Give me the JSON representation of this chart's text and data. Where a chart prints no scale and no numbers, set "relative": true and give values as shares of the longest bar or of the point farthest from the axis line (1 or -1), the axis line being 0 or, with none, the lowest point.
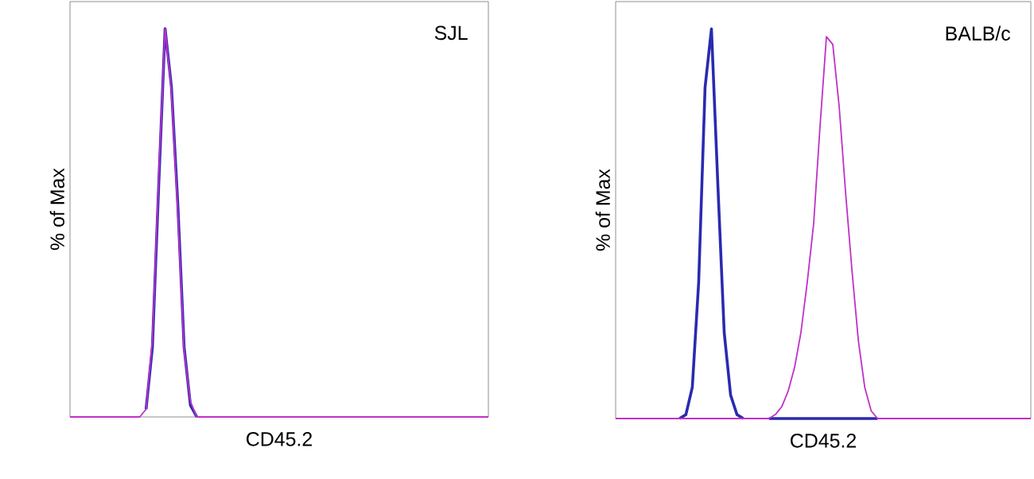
{
  "chart_data": [
    {
      "type": "line",
      "relative": true,
      "xlabel": "CD45.2",
      "ylabel": "% of Max",
      "annotations": [
        "SJL"
      ],
      "line_style": "solid",
      "categories": [
        null,
        null,
        null,
        null,
        null,
        null,
        null,
        null,
        null,
        null,
        null,
        null,
        null,
        null,
        null,
        null,
        null,
        null,
        null,
        null,
        null,
        null,
        null,
        null,
        null,
        null,
        null,
        null,
        null,
        null,
        null,
        null,
        null,
        null,
        null,
        null,
        null,
        null,
        null,
        null,
        null,
        null,
        null,
        null,
        null,
        null,
        null,
        null,
        null,
        null,
        null,
        null,
        null,
        null,
        null,
        null,
        null,
        null,
        null,
        null,
        null,
        null,
        null,
        null,
        null,
        null,
        null
      ],
      "series": [
        {
          "color": "#2a2ab0",
          "values": [
            null,
            null,
            null,
            null,
            null,
            null,
            null,
            null,
            null,
            null,
            null,
            null,
            0.02,
            0.18,
            0.6,
            1.0,
            0.85,
            0.55,
            0.18,
            0.03,
            0,
            null,
            null,
            null,
            null,
            null,
            null,
            null,
            null,
            null,
            null,
            null,
            null,
            null,
            null,
            null,
            null,
            null,
            null,
            null,
            null,
            null,
            null,
            null,
            null,
            null,
            null,
            null,
            null,
            null,
            null,
            null,
            null,
            null,
            null,
            null,
            null,
            null,
            null,
            null,
            null,
            null,
            null,
            null,
            null,
            null,
            null
          ]
        },
        {
          "color": "#c030c8",
          "values": [
            0,
            0,
            0,
            0,
            0,
            0,
            0,
            0,
            0,
            0,
            0,
            0,
            0.02,
            0.2,
            0.62,
            1.0,
            0.84,
            0.53,
            0.17,
            0.04,
            0,
            0,
            0,
            0,
            0,
            0,
            0,
            0,
            0,
            0,
            0,
            0,
            0,
            0,
            0,
            0,
            0,
            0,
            0,
            0,
            0,
            0,
            0,
            0,
            0,
            0,
            0,
            0,
            0,
            0,
            0,
            0,
            0,
            0,
            0,
            0,
            0,
            0,
            0,
            0,
            0,
            0,
            0,
            0,
            0,
            0,
            0
          ]
        }
      ]
    },
    {
      "type": "line",
      "relative": true,
      "xlabel": "CD45.2",
      "ylabel": "% of Max",
      "annotations": [
        "BALB/c"
      ],
      "line_style": "solid",
      "categories": [
        null,
        null,
        null,
        null,
        null,
        null,
        null,
        null,
        null,
        null,
        null,
        null,
        null,
        null,
        null,
        null,
        null,
        null,
        null,
        null,
        null,
        null,
        null,
        null,
        null,
        null,
        null,
        null,
        null,
        null,
        null,
        null,
        null,
        null,
        null,
        null,
        null,
        null,
        null,
        null,
        null,
        null,
        null,
        null,
        null,
        null,
        null,
        null,
        null,
        null,
        null,
        null,
        null,
        null,
        null,
        null,
        null,
        null,
        null,
        null,
        null,
        null,
        null,
        null,
        null,
        null
      ],
      "series": [
        {
          "color": "#2a2ab0",
          "values": [
            null,
            null,
            null,
            null,
            null,
            null,
            null,
            null,
            null,
            null,
            0,
            0.01,
            0.08,
            0.35,
            0.85,
            1.0,
            0.6,
            0.22,
            0.06,
            0.01,
            0,
            null,
            null,
            null,
            0,
            0,
            0,
            0,
            0,
            0,
            0,
            0,
            0,
            0,
            0,
            0,
            0,
            0,
            0,
            0,
            0,
            0,
            null,
            null,
            null,
            null,
            null,
            null,
            null,
            null,
            null,
            null,
            null,
            null,
            null,
            null,
            null,
            null,
            null,
            null,
            null,
            null,
            null,
            null,
            null,
            null
          ]
        },
        {
          "color": "#c030c8",
          "values": [
            0,
            0,
            0,
            0,
            0,
            0,
            0,
            0,
            0,
            0,
            0,
            0,
            0,
            0,
            0,
            0,
            0,
            0,
            0,
            0,
            0,
            0,
            0,
            0,
            0,
            0.01,
            0.03,
            0.07,
            0.13,
            0.22,
            0.35,
            0.5,
            0.75,
            0.98,
            0.96,
            0.8,
            0.58,
            0.38,
            0.2,
            0.08,
            0.02,
            0,
            0,
            0,
            0,
            0,
            0,
            0,
            0,
            0,
            0,
            0,
            0,
            0,
            0,
            0,
            0,
            0,
            0,
            0,
            0,
            0,
            0,
            0,
            0,
            0
          ]
        }
      ]
    }
  ]
}
